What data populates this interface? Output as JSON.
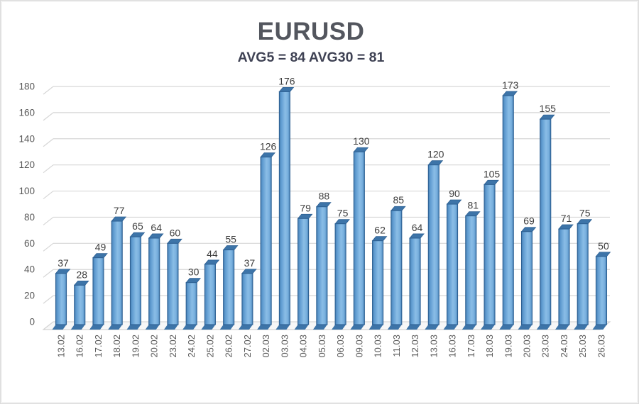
{
  "chart_data": {
    "type": "bar",
    "title": "EURUSD",
    "subtitle": "AVG5 = 84 AVG30 = 81",
    "avg5": 84,
    "avg30": 81,
    "categories": [
      "13.02",
      "16.02",
      "17.02",
      "18.02",
      "19.02",
      "20.02",
      "23.02",
      "24.02",
      "25.02",
      "26.02",
      "27.02",
      "02.03",
      "03.03",
      "04.03",
      "05.03",
      "06.03",
      "09.03",
      "10.03",
      "11.03",
      "12.03",
      "13.03",
      "16.03",
      "17.03",
      "18.03",
      "19.03",
      "20.03",
      "23.03",
      "24.03",
      "25.03",
      "26.03"
    ],
    "values": [
      37,
      28,
      49,
      77,
      65,
      64,
      60,
      30,
      44,
      55,
      37,
      126,
      176,
      79,
      88,
      75,
      130,
      62,
      85,
      64,
      120,
      90,
      81,
      105,
      173,
      69,
      155,
      71,
      75,
      50
    ],
    "ylim": [
      0,
      180
    ],
    "ytick_step": 20,
    "grid": true,
    "legend": false,
    "data_labels": true,
    "xlabel": "",
    "ylabel": "",
    "style": {
      "bar_gradient": [
        [
          "0%",
          "#477fb2"
        ],
        [
          "18%",
          "#5f9bd0"
        ],
        [
          "55%",
          "#8abde6"
        ],
        [
          "80%",
          "#79b0de"
        ],
        [
          "100%",
          "#4c86ba"
        ]
      ],
      "bar_edge": "#2e6194",
      "bar_cap": "#3d74a8",
      "grid_color": "#d6d6d6",
      "floor_fill": "#f7f7f7",
      "floor_edge": "#c8c8c8",
      "title_color": "#53565e",
      "subtitle_color": "#3f4254",
      "axis_label_color": "#595959",
      "value_label_color": "#3d3d3d"
    }
  }
}
